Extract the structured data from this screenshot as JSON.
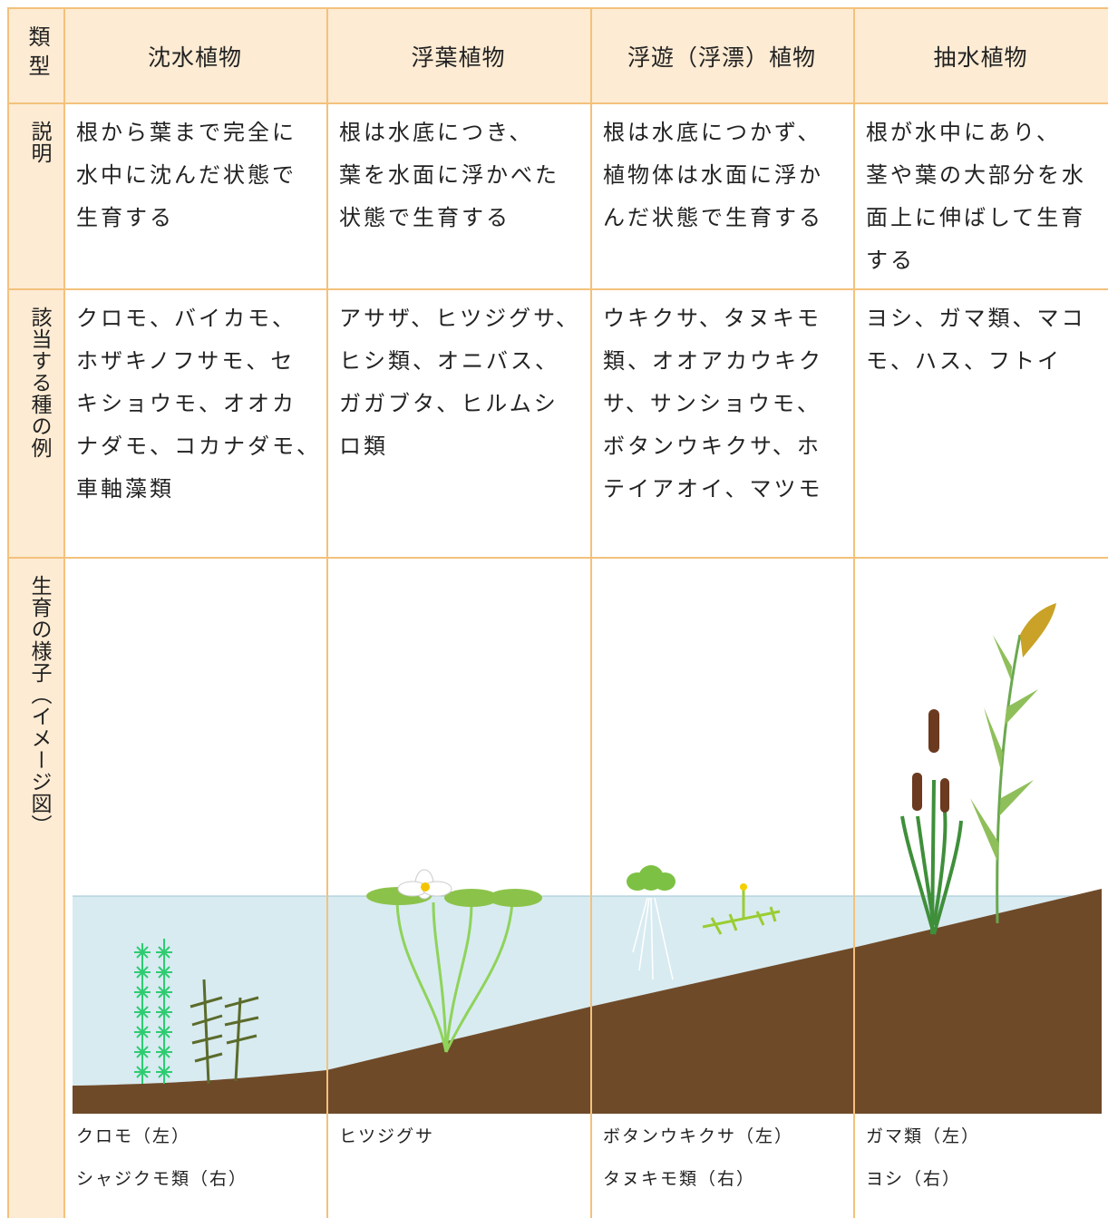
{
  "header": {
    "corner": "類型",
    "columns": [
      "沈水植物",
      "浮葉植物",
      "浮遊（浮漂）植物",
      "抽水植物"
    ]
  },
  "rows": [
    {
      "label": "説明",
      "cells": [
        [
          "根から葉まで完全に",
          "水中に沈んだ状態で",
          "生育する"
        ],
        [
          "根は水底につき、",
          "葉を水面に浮かべた",
          "状態で生育する"
        ],
        [
          "根は水底につかず、",
          "植物体は水面に浮か",
          "んだ状態で生育する"
        ],
        [
          "根が水中にあり、",
          "茎や葉の大部分を水",
          "面上に伸ばして生育",
          "する"
        ]
      ]
    },
    {
      "label": "該当する種の例",
      "cells": [
        [
          "クロモ、バイカモ、",
          "ホザキノフサモ、セ",
          "キショウモ、オオカ",
          "ナダモ、コカナダモ、",
          "車軸藻類"
        ],
        [
          "アサザ、ヒツジグサ、",
          "ヒシ類、オニバス、",
          "ガガブタ、ヒルムシ",
          "ロ類"
        ],
        [
          "ウキクサ、タヌキモ",
          "類、オオアカウキク",
          "サ、サンショウモ、",
          "ボタンウキクサ、ホ",
          "テイアオイ、マツモ"
        ],
        [
          "ヨシ、ガマ類、マコ",
          "モ、ハス、フトイ"
        ]
      ]
    },
    {
      "label": "生育の様子（イメージ図）",
      "cells": [
        [
          "クロモ（左）",
          "シャジクモ類（右）"
        ],
        [
          "ヒツジグサ"
        ],
        [
          "ボタンウキクサ（左）",
          "タヌキモ類（右）"
        ],
        [
          "ガマ類（左）",
          "ヨシ（右）"
        ]
      ]
    }
  ]
}
